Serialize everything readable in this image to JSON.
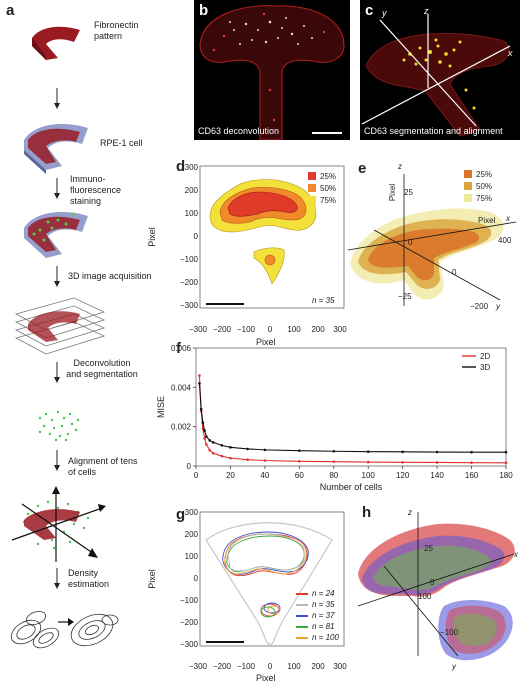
{
  "panels": {
    "a": {
      "label": "a",
      "steps": [
        "Fibronectin pattern",
        "RPE-1 cell",
        "Immuno-fluorescence staining",
        "3D image acquisition",
        "Deconvolution and segmentation",
        "Alignment of tens of cells",
        "Density estimation"
      ]
    },
    "b": {
      "label": "b",
      "caption": "CD63 deconvolution"
    },
    "c": {
      "label": "c",
      "caption": "CD63 segmentation and alignment",
      "axes": [
        "z",
        "y",
        "x"
      ]
    },
    "d": {
      "label": "d",
      "ylabel": "Pixel",
      "xlabel": "Pixel",
      "yticks": [
        "300",
        "200",
        "100",
        "0",
        "−100",
        "−200",
        "−300"
      ],
      "xticks": [
        "−300",
        "−200",
        "−100",
        "0",
        "100",
        "200",
        "300"
      ],
      "legend": [
        {
          "label": "25%",
          "color": "#e03a2a"
        },
        {
          "label": "50%",
          "color": "#f08a2a"
        },
        {
          "label": "75%",
          "color": "#f4e03a"
        }
      ],
      "n_label": "n = 35"
    },
    "e": {
      "label": "e",
      "axis_labels": {
        "z": "z",
        "y": "y",
        "x": "x",
        "pixel_v": "Pixel",
        "pixel_h": "Pixel"
      },
      "ticks": [
        "25",
        "0",
        "−25",
        "400",
        "0",
        "−200"
      ],
      "legend": [
        {
          "label": "25%",
          "color": "#d9762a"
        },
        {
          "label": "50%",
          "color": "#d9a640"
        },
        {
          "label": "75%",
          "color": "#efe79a"
        }
      ]
    },
    "f": {
      "label": "f"
    },
    "g": {
      "label": "g",
      "ylabel": "Pixel",
      "xlabel": "Pixel",
      "yticks": [
        "300",
        "200",
        "100",
        "0",
        "−100",
        "−200",
        "−300"
      ],
      "xticks": [
        "−300",
        "−200",
        "−100",
        "0",
        "100",
        "200",
        "300"
      ],
      "legend": [
        {
          "label": "n = 24",
          "color": "#e03a2a"
        },
        {
          "label": "n = 35",
          "color": "#b8b8b8"
        },
        {
          "label": "n = 37",
          "color": "#3a4fd0"
        },
        {
          "label": "n = 81",
          "color": "#3aa83a"
        },
        {
          "label": "n = 100",
          "color": "#f0a030"
        }
      ]
    },
    "h": {
      "label": "h",
      "axis_labels": {
        "z": "z",
        "x": "x",
        "y": "y"
      },
      "ticks": [
        "25",
        "0",
        "100",
        "−100"
      ]
    }
  },
  "chart_data": {
    "type": "line",
    "xlabel": "Number of cells",
    "ylabel": "MISE",
    "xlim": [
      0,
      180
    ],
    "ylim": [
      0,
      0.006
    ],
    "xticks": [
      0,
      20,
      40,
      60,
      80,
      100,
      120,
      140,
      160,
      180
    ],
    "yticks": [
      0,
      0.002,
      0.004,
      0.006
    ],
    "ytick_labels": [
      "0",
      "0.002",
      "0.004",
      "0.006"
    ],
    "legend_position": "top-right",
    "series": [
      {
        "name": "2D",
        "color": "#e03030",
        "x": [
          2,
          3,
          4,
          5,
          6,
          8,
          10,
          15,
          20,
          30,
          40,
          60,
          80,
          100,
          120,
          140,
          160,
          180
        ],
        "y": [
          0.0046,
          0.0028,
          0.0019,
          0.0014,
          0.0011,
          0.0008,
          0.00065,
          0.0005,
          0.0004,
          0.00032,
          0.00028,
          0.00024,
          0.00022,
          0.0002,
          0.00019,
          0.00018,
          0.00017,
          0.00016
        ]
      },
      {
        "name": "3D",
        "color": "#111111",
        "x": [
          2,
          3,
          4,
          5,
          6,
          8,
          10,
          15,
          20,
          30,
          40,
          60,
          80,
          100,
          120,
          140,
          160,
          180
        ],
        "y": [
          0.0042,
          0.0029,
          0.0022,
          0.0018,
          0.0015,
          0.0013,
          0.0012,
          0.00105,
          0.00095,
          0.00087,
          0.00082,
          0.00078,
          0.00075,
          0.00073,
          0.00072,
          0.00071,
          0.0007,
          0.0007
        ]
      }
    ]
  }
}
